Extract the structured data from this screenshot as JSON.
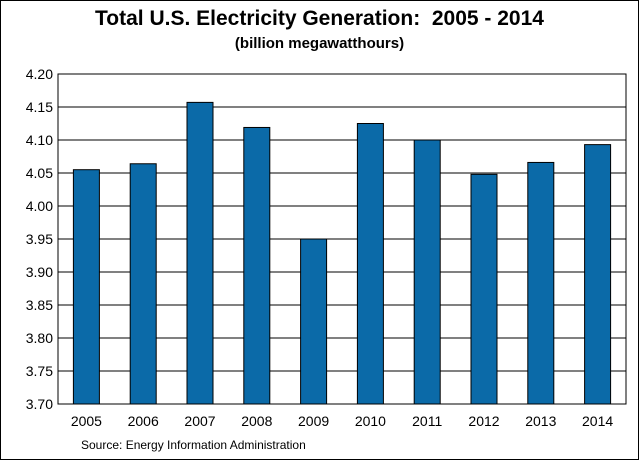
{
  "chart_data": {
    "type": "bar",
    "title": "Total U.S. Electricity Generation:  2005 - 2014",
    "subtitle": "(billion megawatthours)",
    "categories": [
      "2005",
      "2006",
      "2007",
      "2008",
      "2009",
      "2010",
      "2011",
      "2012",
      "2013",
      "2014"
    ],
    "values": [
      4.055,
      4.064,
      4.157,
      4.119,
      3.95,
      4.125,
      4.1,
      4.048,
      4.066,
      4.093
    ],
    "ylim": [
      3.7,
      4.2
    ],
    "yticks": [
      "3.70",
      "3.75",
      "3.80",
      "3.85",
      "3.90",
      "3.95",
      "4.00",
      "4.05",
      "4.10",
      "4.15",
      "4.20"
    ],
    "grid": true,
    "bar_color": "#0B6AA8",
    "source": "Source: Energy Information Administration"
  }
}
